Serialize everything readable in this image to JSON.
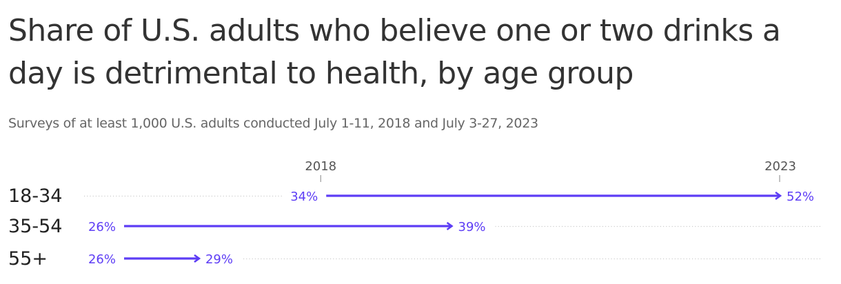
{
  "header": {
    "title": "Share of U.S. adults who believe one or two drinks a day is detrimental to health, by age group",
    "subtitle": "Surveys of at least 1,000 U.S. adults conducted July 1-11, 2018 and July 3-27, 2023"
  },
  "chart_data": {
    "type": "arrow",
    "title": "Share of U.S. adults who believe one or two drinks a day is detrimental to health, by age group",
    "subtitle": "Surveys of at least 1,000 U.S. adults conducted July 1-11, 2018 and July 3-27, 2023",
    "start_label": "2018",
    "end_label": "2023",
    "categories": [
      "18-34",
      "35-54",
      "55+"
    ],
    "series": [
      {
        "name": "2018",
        "values": [
          34,
          26,
          26
        ]
      },
      {
        "name": "2023",
        "values": [
          52,
          39,
          29
        ]
      }
    ],
    "value_suffix": "%",
    "xlim": [
      26,
      52
    ],
    "grid": false,
    "colors": {
      "arrow": "#5d3df5",
      "dots": "#cccccc",
      "tick": "#999999"
    }
  }
}
